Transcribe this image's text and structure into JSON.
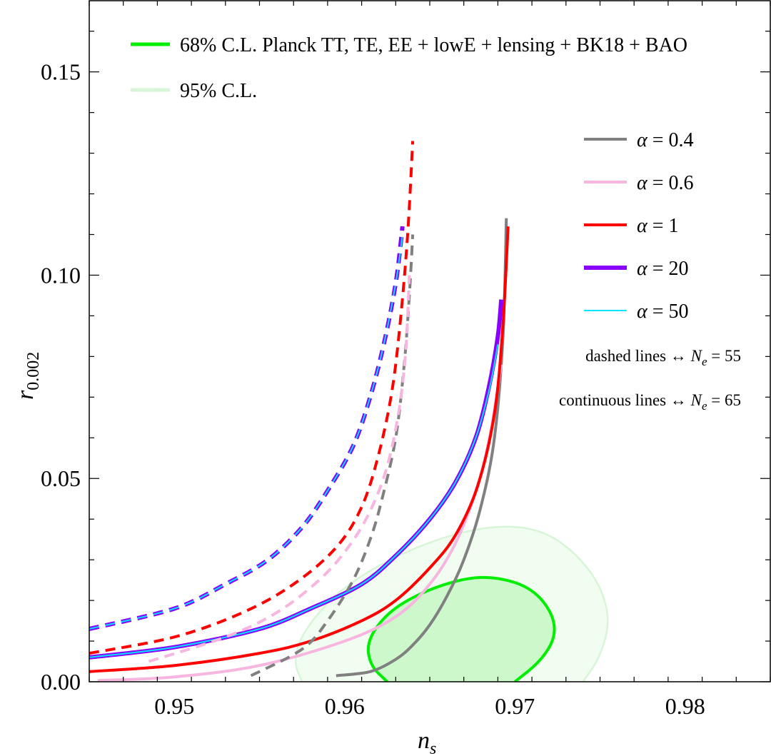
{
  "chart_data": {
    "type": "line",
    "xlabel": "n_s",
    "ylabel": "r_0.002",
    "xlabel_main": "n",
    "xlabel_sub": "s",
    "ylabel_main": "r",
    "ylabel_sub": "0.002",
    "xlim": [
      0.945,
      0.985
    ],
    "ylim": [
      0.0,
      0.1675
    ],
    "x_ticks": [
      {
        "value": 0.95,
        "label": "0.95"
      },
      {
        "value": 0.96,
        "label": "0.96"
      },
      {
        "value": 0.97,
        "label": "0.97"
      },
      {
        "value": 0.98,
        "label": "0.98"
      }
    ],
    "y_ticks": [
      {
        "value": 0.0,
        "label": "0.00"
      },
      {
        "value": 0.05,
        "label": "0.05"
      },
      {
        "value": 0.1,
        "label": "0.10"
      },
      {
        "value": 0.15,
        "label": "0.15"
      }
    ],
    "x_minor_step": 0.002,
    "y_minor_step": 0.01,
    "grid": false,
    "contour_legend": [
      {
        "label": "68% C.L. Planck TT, TE, EE + lowE + lensing + BK18 + BAO",
        "color": "#00ee00"
      },
      {
        "label": "95% C.L.",
        "color": "#d8f5d8"
      }
    ],
    "contours": [
      {
        "name": "95% C.L.",
        "fill": "#f0fdf0",
        "stroke": "#d8f5d8",
        "points": [
          [
            0.9575,
            0.0
          ],
          [
            0.957,
            0.005
          ],
          [
            0.9575,
            0.012
          ],
          [
            0.9595,
            0.022
          ],
          [
            0.9625,
            0.03
          ],
          [
            0.966,
            0.036
          ],
          [
            0.969,
            0.0385
          ],
          [
            0.9715,
            0.0375
          ],
          [
            0.9735,
            0.032
          ],
          [
            0.975,
            0.024
          ],
          [
            0.9756,
            0.015
          ],
          [
            0.975,
            0.006
          ],
          [
            0.974,
            0.0
          ]
        ]
      },
      {
        "name": "68% C.L.",
        "fill": "#ccf8cc",
        "stroke": "#00ee00",
        "points": [
          [
            0.9625,
            0.0
          ],
          [
            0.9615,
            0.004
          ],
          [
            0.9613,
            0.01
          ],
          [
            0.9625,
            0.017
          ],
          [
            0.9645,
            0.022
          ],
          [
            0.967,
            0.0255
          ],
          [
            0.969,
            0.0258
          ],
          [
            0.971,
            0.023
          ],
          [
            0.9722,
            0.017
          ],
          [
            0.9724,
            0.011
          ],
          [
            0.9715,
            0.005
          ],
          [
            0.97,
            0.0
          ]
        ]
      }
    ],
    "series_legend": [
      {
        "label": "α = 0.4",
        "greek": "α",
        "rest": " = 0.4",
        "color": "#808080",
        "width": 4
      },
      {
        "label": "α = 0.6",
        "greek": "α",
        "rest": " = 0.6",
        "color": "#f7b5e0",
        "width": 4
      },
      {
        "label": "α = 1",
        "greek": "α",
        "rest": " = 1",
        "color": "#ff0000",
        "width": 4
      },
      {
        "label": "α = 20",
        "greek": "α",
        "rest": " = 20",
        "color": "#8a00ff",
        "width": 6
      },
      {
        "label": "α = 50",
        "greek": "α",
        "rest": " = 50",
        "color": "#00e5ff",
        "width": 2
      }
    ],
    "notes": [
      {
        "left": "dashed lines",
        "arrow": "↔",
        "var_main": "N",
        "var_sub": "e",
        "right": " = 55"
      },
      {
        "left": "continuous lines",
        "arrow": "↔",
        "var_main": "N",
        "var_sub": "e",
        "right": " = 65"
      }
    ],
    "series": [
      {
        "name": "α = 0.4, N_e = 65",
        "color": "#808080",
        "width": 4,
        "dash": false,
        "x": [
          0.9595,
          0.9615,
          0.963,
          0.964,
          0.965,
          0.966,
          0.967,
          0.968,
          0.9688,
          0.9693,
          0.9695
        ],
        "y": [
          0.0015,
          0.0025,
          0.0055,
          0.009,
          0.014,
          0.021,
          0.03,
          0.043,
          0.06,
          0.085,
          0.114
        ]
      },
      {
        "name": "α = 0.6, N_e = 65",
        "color": "#f7b5e0",
        "width": 4,
        "dash": false,
        "x": [
          0.9455,
          0.95,
          0.955,
          0.96,
          0.963,
          0.965,
          0.9665,
          0.9678,
          0.9686,
          0.9692
        ],
        "y": [
          0.0003,
          0.0012,
          0.004,
          0.01,
          0.016,
          0.024,
          0.034,
          0.048,
          0.062,
          0.078
        ]
      },
      {
        "name": "α = 1, N_e = 65",
        "color": "#ff0000",
        "width": 4,
        "dash": false,
        "x": [
          0.945,
          0.95,
          0.955,
          0.958,
          0.961,
          0.963,
          0.965,
          0.9665,
          0.9678,
          0.9688,
          0.9693,
          0.9696
        ],
        "y": [
          0.0025,
          0.004,
          0.007,
          0.01,
          0.015,
          0.02,
          0.028,
          0.036,
          0.048,
          0.066,
          0.088,
          0.112
        ]
      },
      {
        "name": "α = 20, N_e = 65",
        "color": "#8a00ff",
        "width": 6,
        "dash": false,
        "x": [
          0.945,
          0.95,
          0.955,
          0.958,
          0.961,
          0.963,
          0.965,
          0.9665,
          0.9677,
          0.9685,
          0.969,
          0.9692
        ],
        "y": [
          0.006,
          0.0085,
          0.013,
          0.018,
          0.024,
          0.031,
          0.04,
          0.049,
          0.06,
          0.073,
          0.085,
          0.094
        ]
      },
      {
        "name": "α = 50, N_e = 65",
        "color": "#00e5ff",
        "width": 2,
        "dash": false,
        "x": [
          0.945,
          0.95,
          0.955,
          0.958,
          0.961,
          0.963,
          0.965,
          0.9665,
          0.9677,
          0.9685,
          0.969
        ],
        "y": [
          0.006,
          0.0085,
          0.013,
          0.018,
          0.024,
          0.031,
          0.04,
          0.049,
          0.06,
          0.072,
          0.083
        ]
      },
      {
        "name": "α = 0.4, N_e = 55",
        "color": "#808080",
        "width": 4,
        "dash": true,
        "x": [
          0.9545,
          0.9575,
          0.959,
          0.9605,
          0.9615,
          0.9622,
          0.963,
          0.9635,
          0.9638,
          0.964
        ],
        "y": [
          0.0015,
          0.008,
          0.015,
          0.025,
          0.035,
          0.045,
          0.06,
          0.078,
          0.095,
          0.11
        ]
      },
      {
        "name": "α = 0.6, N_e = 55",
        "color": "#f7b5e0",
        "width": 4,
        "dash": true,
        "x": [
          0.9485,
          0.953,
          0.956,
          0.9585,
          0.9602,
          0.9615,
          0.9625,
          0.9632,
          0.9636,
          0.9638
        ],
        "y": [
          0.005,
          0.011,
          0.017,
          0.025,
          0.033,
          0.042,
          0.053,
          0.067,
          0.082,
          0.1
        ]
      },
      {
        "name": "α = 1, N_e = 55",
        "color": "#ff0000",
        "width": 4,
        "dash": true,
        "x": [
          0.945,
          0.95,
          0.954,
          0.957,
          0.9595,
          0.961,
          0.962,
          0.9628,
          0.9633,
          0.9637,
          0.964
        ],
        "y": [
          0.007,
          0.011,
          0.017,
          0.024,
          0.033,
          0.043,
          0.056,
          0.072,
          0.09,
          0.11,
          0.133
        ]
      },
      {
        "name": "α = 20, N_e = 55",
        "color": "#8a00ff",
        "width": 6,
        "dash": true,
        "x": [
          0.945,
          0.95,
          0.953,
          0.9555,
          0.9575,
          0.959,
          0.9605,
          0.9615,
          0.9623,
          0.963,
          0.9634
        ],
        "y": [
          0.013,
          0.018,
          0.024,
          0.03,
          0.038,
          0.047,
          0.058,
          0.07,
          0.083,
          0.098,
          0.112
        ]
      },
      {
        "name": "α = 50, N_e = 55",
        "color": "#00e5ff",
        "width": 2,
        "dash": true,
        "x": [
          0.945,
          0.95,
          0.953,
          0.9555,
          0.9575,
          0.959,
          0.9605,
          0.9615,
          0.9623,
          0.963,
          0.9634
        ],
        "y": [
          0.013,
          0.018,
          0.024,
          0.03,
          0.038,
          0.047,
          0.058,
          0.07,
          0.083,
          0.098,
          0.11
        ]
      }
    ]
  }
}
